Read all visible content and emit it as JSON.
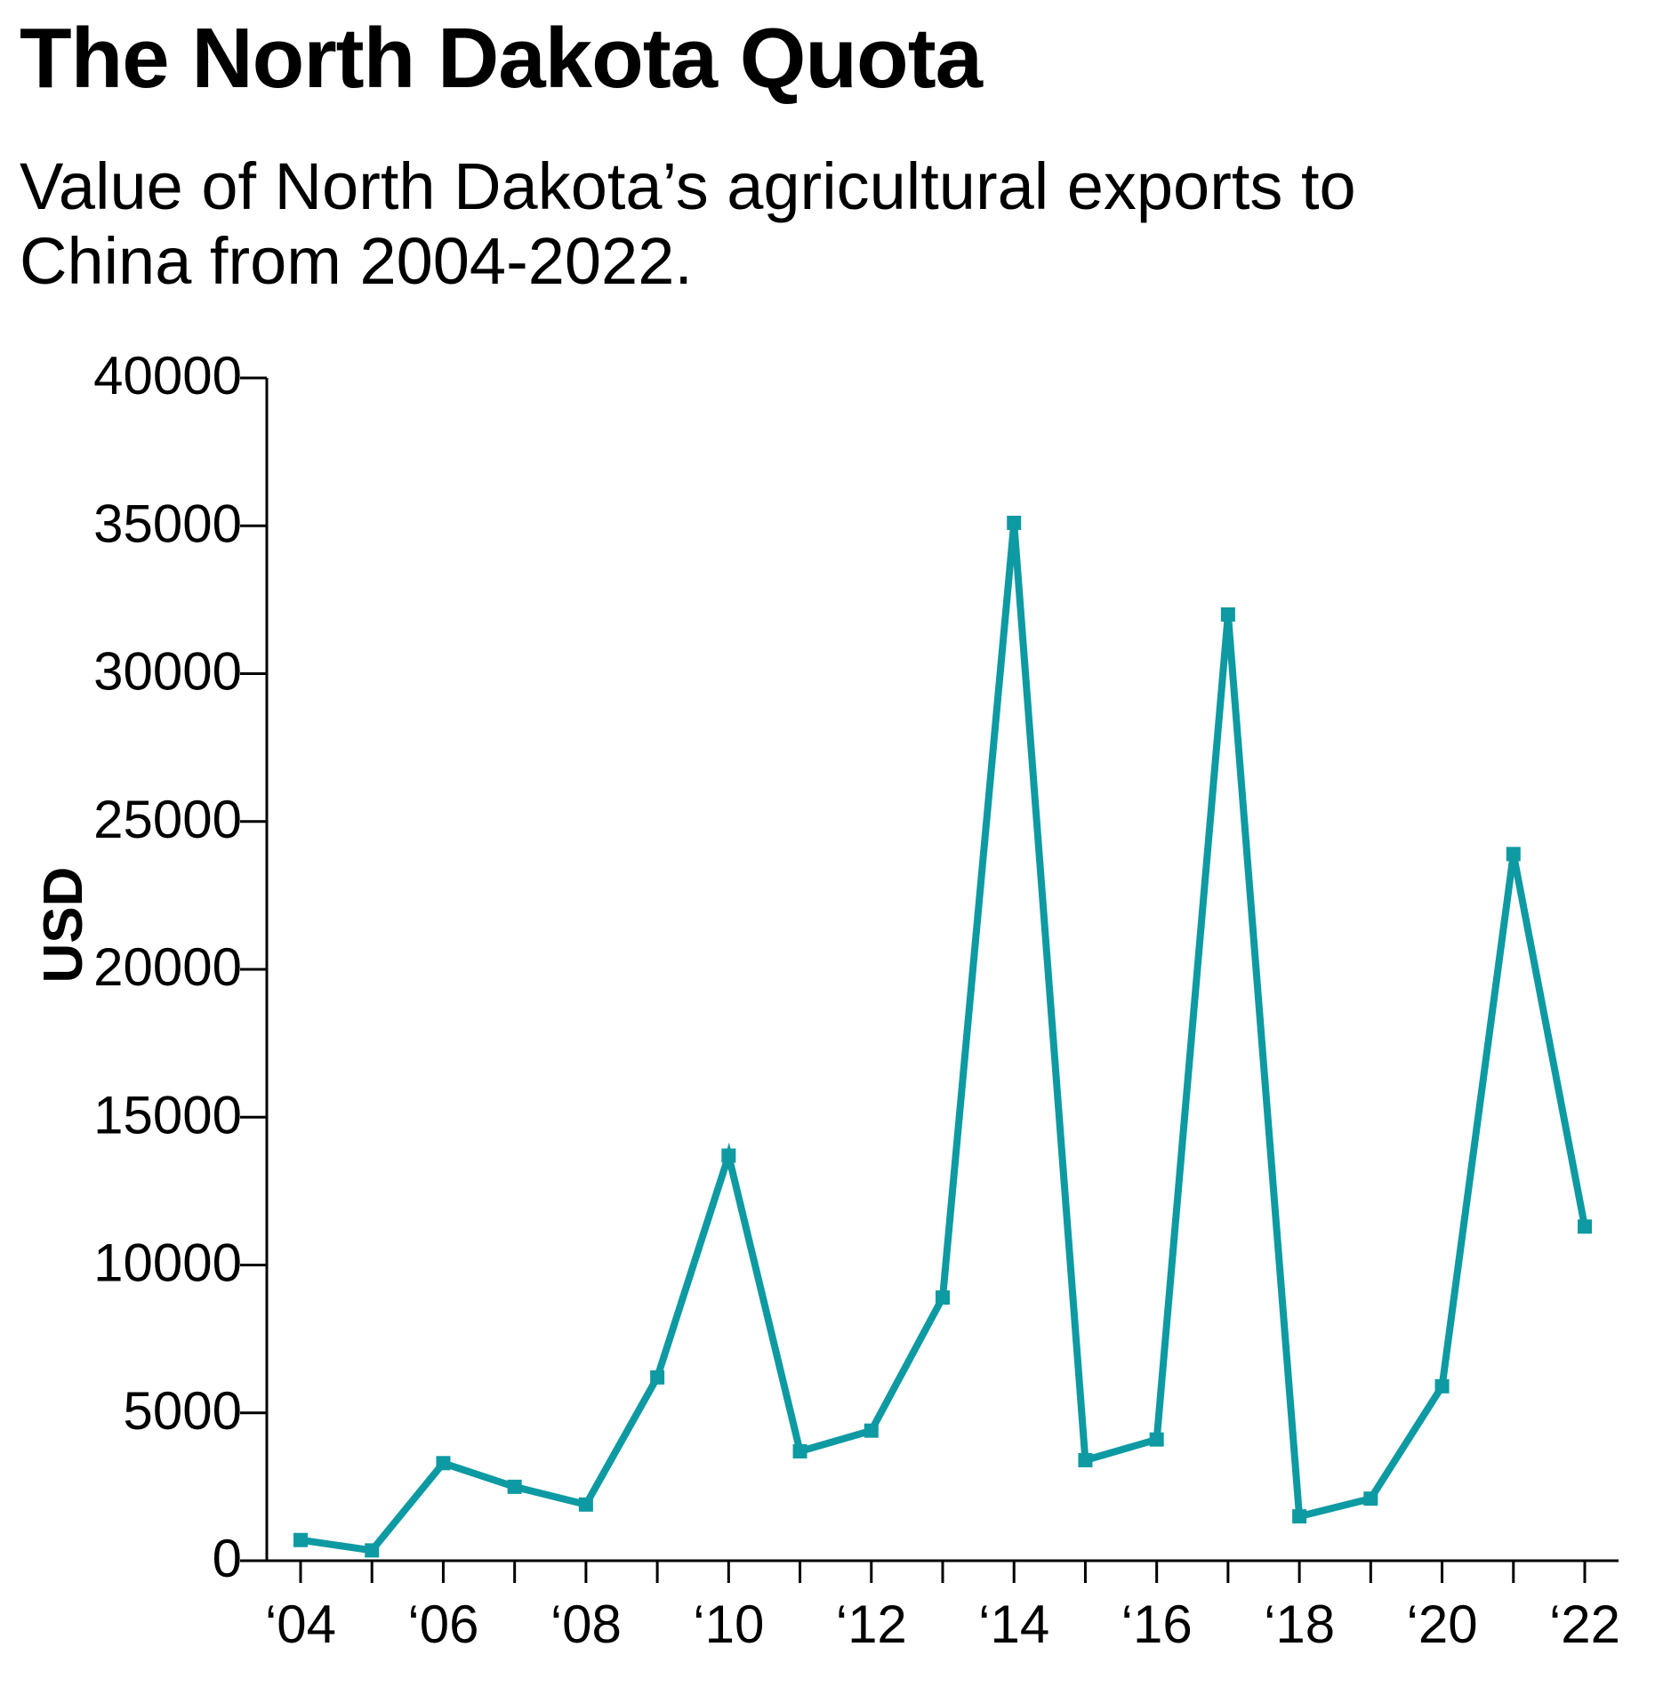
{
  "header": {
    "title": "The North Dakota Quota",
    "subtitle": "Value of North Dakota’s agricultural exports to China from 2004-2022."
  },
  "chart_data": {
    "type": "line",
    "title": "The North Dakota Quota",
    "subtitle": "Value of North Dakota’s agricultural exports to China from 2004-2022.",
    "xlabel": "",
    "ylabel": "USD",
    "ylim": [
      0,
      40000
    ],
    "yticks": [
      0,
      5000,
      10000,
      15000,
      20000,
      25000,
      30000,
      35000,
      40000
    ],
    "x": [
      2004,
      2005,
      2006,
      2007,
      2008,
      2009,
      2010,
      2011,
      2012,
      2013,
      2014,
      2015,
      2016,
      2017,
      2018,
      2019,
      2020,
      2021,
      2022
    ],
    "x_tick_labels": [
      "‘04",
      "‘06",
      "‘08",
      "‘10",
      "‘12",
      "‘14",
      "‘16",
      "‘18",
      "‘20",
      "‘22"
    ],
    "x_tick_label_years": [
      2004,
      2006,
      2008,
      2010,
      2012,
      2014,
      2016,
      2018,
      2020,
      2022
    ],
    "series": [
      {
        "values": [
          700,
          350,
          3300,
          2500,
          1900,
          6200,
          13700,
          3700,
          4400,
          8900,
          35100,
          3400,
          4100,
          32000,
          1500,
          2100,
          5900,
          23900,
          11300
        ],
        "color": "#0e9aa2"
      }
    ],
    "grid": false,
    "legend": "none"
  }
}
